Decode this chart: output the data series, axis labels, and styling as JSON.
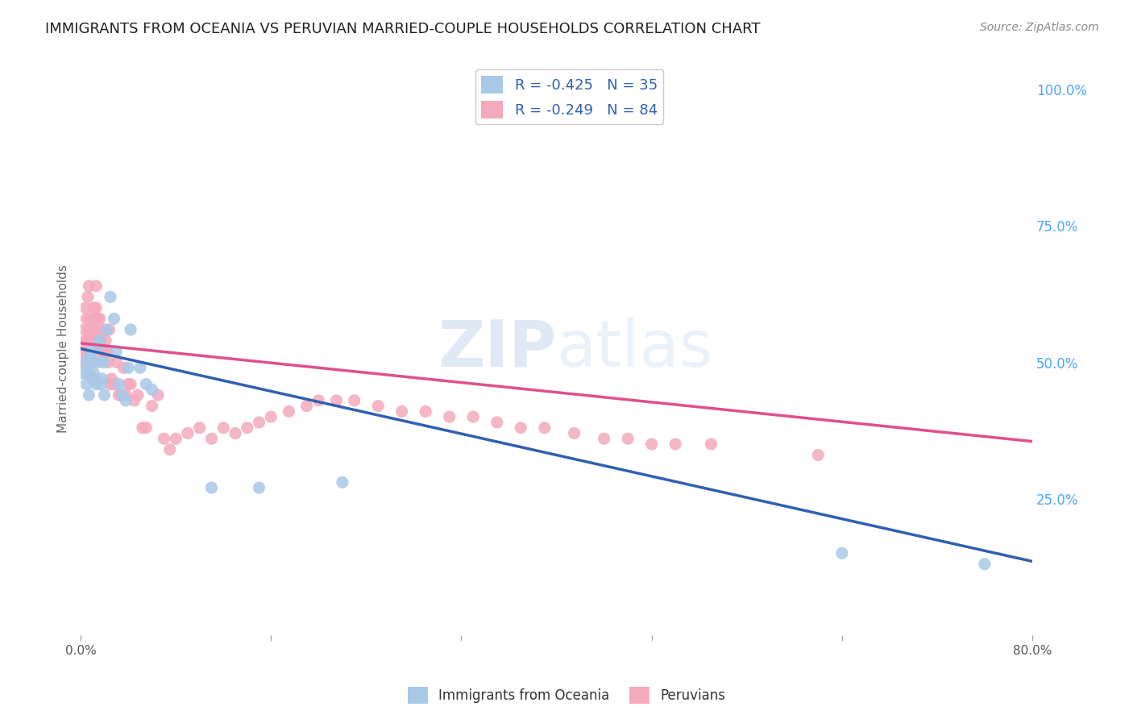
{
  "title": "IMMIGRANTS FROM OCEANIA VS PERUVIAN MARRIED-COUPLE HOUSEHOLDS CORRELATION CHART",
  "source": "Source: ZipAtlas.com",
  "ylabel": "Married-couple Households",
  "right_ytick_labels": [
    "100.0%",
    "75.0%",
    "50.0%",
    "25.0%"
  ],
  "right_ytick_values": [
    1.0,
    0.75,
    0.5,
    0.25
  ],
  "watermark_zip": "ZIP",
  "watermark_atlas": "atlas",
  "legend_entry1": "R = -0.425   N = 35",
  "legend_entry2": "R = -0.249   N = 84",
  "legend_label1": "Immigrants from Oceania",
  "legend_label2": "Peruvians",
  "blue_color": "#a8c8e8",
  "pink_color": "#f4aabc",
  "blue_line_color": "#3060b0",
  "pink_line_color": "#e0508a",
  "blue_scatter_x": [
    0.002,
    0.004,
    0.005,
    0.006,
    0.007,
    0.008,
    0.009,
    0.01,
    0.011,
    0.012,
    0.013,
    0.014,
    0.015,
    0.016,
    0.017,
    0.018,
    0.019,
    0.02,
    0.022,
    0.025,
    0.028,
    0.03,
    0.032,
    0.035,
    0.038,
    0.04,
    0.042,
    0.05,
    0.055,
    0.06,
    0.11,
    0.15,
    0.22,
    0.64,
    0.76
  ],
  "blue_scatter_y": [
    0.48,
    0.5,
    0.46,
    0.48,
    0.44,
    0.51,
    0.52,
    0.5,
    0.48,
    0.47,
    0.46,
    0.5,
    0.53,
    0.54,
    0.46,
    0.47,
    0.5,
    0.44,
    0.56,
    0.62,
    0.58,
    0.52,
    0.46,
    0.44,
    0.43,
    0.49,
    0.56,
    0.49,
    0.46,
    0.45,
    0.27,
    0.27,
    0.28,
    0.15,
    0.13
  ],
  "pink_scatter_x": [
    0.001,
    0.002,
    0.003,
    0.004,
    0.004,
    0.005,
    0.005,
    0.006,
    0.006,
    0.007,
    0.007,
    0.008,
    0.008,
    0.009,
    0.009,
    0.01,
    0.01,
    0.011,
    0.011,
    0.012,
    0.012,
    0.013,
    0.013,
    0.014,
    0.014,
    0.015,
    0.015,
    0.016,
    0.016,
    0.017,
    0.018,
    0.019,
    0.02,
    0.021,
    0.022,
    0.023,
    0.024,
    0.025,
    0.026,
    0.028,
    0.03,
    0.032,
    0.034,
    0.036,
    0.038,
    0.04,
    0.042,
    0.045,
    0.048,
    0.052,
    0.055,
    0.06,
    0.065,
    0.07,
    0.075,
    0.08,
    0.09,
    0.1,
    0.11,
    0.12,
    0.13,
    0.14,
    0.15,
    0.16,
    0.175,
    0.19,
    0.2,
    0.215,
    0.23,
    0.25,
    0.27,
    0.29,
    0.31,
    0.33,
    0.35,
    0.37,
    0.39,
    0.415,
    0.44,
    0.46,
    0.48,
    0.5,
    0.53,
    0.62
  ],
  "pink_scatter_y": [
    0.52,
    0.5,
    0.56,
    0.54,
    0.6,
    0.52,
    0.58,
    0.54,
    0.62,
    0.56,
    0.64,
    0.58,
    0.56,
    0.5,
    0.54,
    0.47,
    0.56,
    0.6,
    0.54,
    0.58,
    0.56,
    0.6,
    0.64,
    0.58,
    0.55,
    0.55,
    0.52,
    0.54,
    0.58,
    0.54,
    0.52,
    0.56,
    0.52,
    0.54,
    0.52,
    0.5,
    0.56,
    0.46,
    0.47,
    0.46,
    0.5,
    0.44,
    0.44,
    0.49,
    0.44,
    0.46,
    0.46,
    0.43,
    0.44,
    0.38,
    0.38,
    0.42,
    0.44,
    0.36,
    0.34,
    0.36,
    0.37,
    0.38,
    0.36,
    0.38,
    0.37,
    0.38,
    0.39,
    0.4,
    0.41,
    0.42,
    0.43,
    0.43,
    0.43,
    0.42,
    0.41,
    0.41,
    0.4,
    0.4,
    0.39,
    0.38,
    0.38,
    0.37,
    0.36,
    0.36,
    0.35,
    0.35,
    0.35,
    0.33
  ],
  "blue_trendline_x": [
    0.0,
    0.8
  ],
  "blue_trendline_y": [
    0.525,
    0.135
  ],
  "pink_trendline_x": [
    0.0,
    0.8
  ],
  "pink_trendline_y": [
    0.535,
    0.355
  ],
  "xlim": [
    0.0,
    0.8
  ],
  "ylim": [
    0.0,
    1.05
  ],
  "background_color": "#ffffff",
  "grid_color": "#dddddd",
  "title_color": "#222222",
  "right_axis_label_color": "#4da6ff",
  "title_fontsize": 13,
  "source_fontsize": 10
}
